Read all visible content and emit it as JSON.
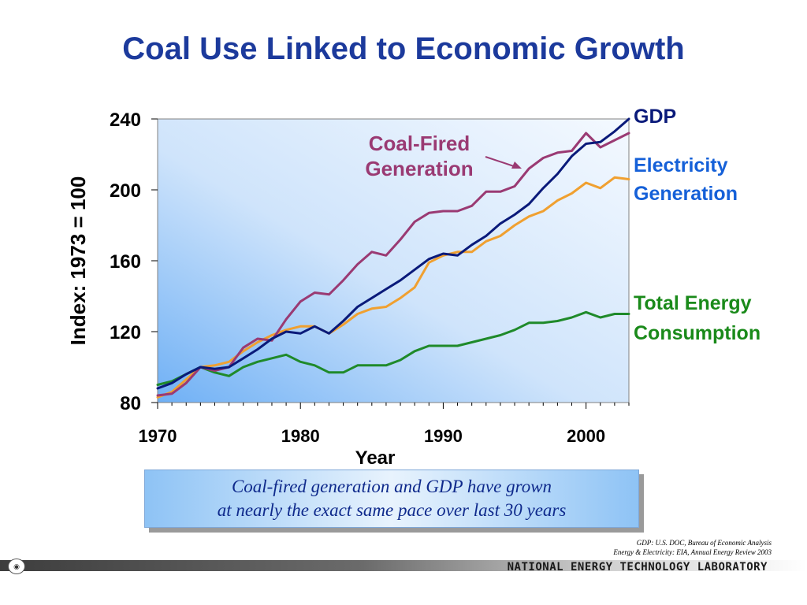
{
  "slide": {
    "title": "Coal Use Linked to Economic Growth",
    "callout_line1": "Coal-fired generation and GDP have grown",
    "callout_line2": "at nearly the exact same pace over last 30 years",
    "source_line1": "GDP:  U.S. DOC, Bureau of Economic Analysis",
    "source_line2": "Energy & Electricity:  EIA, Annual Energy Review 2003",
    "footer_org": "NATIONAL ENERGY TECHNOLOGY LABORATORY",
    "footer_logo_icon": "doe-logo-icon"
  },
  "chart_data": {
    "type": "line",
    "title": "",
    "xlabel": "Year",
    "ylabel": "Index: 1973 = 100",
    "xlim": [
      1970,
      2003
    ],
    "ylim": [
      80,
      240
    ],
    "xticks": [
      1970,
      1980,
      1990,
      2000
    ],
    "yticks": [
      80,
      120,
      160,
      200,
      240
    ],
    "x": [
      1970,
      1971,
      1972,
      1973,
      1974,
      1975,
      1976,
      1977,
      1978,
      1979,
      1980,
      1981,
      1982,
      1983,
      1984,
      1985,
      1986,
      1987,
      1988,
      1989,
      1990,
      1991,
      1992,
      1993,
      1994,
      1995,
      1996,
      1997,
      1998,
      1999,
      2000,
      2001,
      2002,
      2003
    ],
    "series": [
      {
        "name": "GDP",
        "color": "#0a1a7a",
        "values": [
          88,
          91,
          96,
          100,
          99,
          100,
          105,
          110,
          116,
          120,
          119,
          123,
          119,
          126,
          134,
          139,
          144,
          149,
          155,
          161,
          164,
          163,
          169,
          174,
          181,
          186,
          192,
          201,
          209,
          219,
          226,
          227,
          233,
          240
        ]
      },
      {
        "name": "Coal-Fired Generation",
        "color": "#9a3a73",
        "values": [
          84,
          85,
          91,
          100,
          98,
          100,
          111,
          116,
          115,
          127,
          137,
          142,
          141,
          149,
          158,
          165,
          163,
          172,
          182,
          187,
          188,
          188,
          191,
          199,
          199,
          202,
          212,
          218,
          221,
          222,
          232,
          224,
          228,
          232
        ]
      },
      {
        "name": "Electricity Generation",
        "color": "#f0a030",
        "values": [
          83,
          86,
          93,
          100,
          101,
          103,
          109,
          114,
          118,
          121,
          123,
          123,
          119,
          124,
          130,
          133,
          134,
          139,
          145,
          159,
          163,
          165,
          165,
          171,
          174,
          180,
          185,
          188,
          194,
          198,
          204,
          201,
          207,
          206
        ]
      },
      {
        "name": "Total Energy Consumption",
        "color": "#1f8a2a",
        "values": [
          90,
          92,
          96,
          100,
          97,
          95,
          100,
          103,
          105,
          107,
          103,
          101,
          97,
          97,
          101,
          101,
          101,
          104,
          109,
          112,
          112,
          112,
          114,
          116,
          118,
          121,
          125,
          125,
          126,
          128,
          131,
          128,
          130,
          130
        ]
      }
    ],
    "legend": [
      {
        "label": "GDP",
        "color": "#0a1a7a"
      },
      {
        "label": "Electricity Generation",
        "color": "#1560d8"
      },
      {
        "label": "Total Energy Consumption",
        "color": "#1a8a1a"
      }
    ],
    "annotation": {
      "text": "Coal-Fired Generation",
      "color": "#9a3a73"
    },
    "grid": false,
    "legend_placement": "right"
  }
}
